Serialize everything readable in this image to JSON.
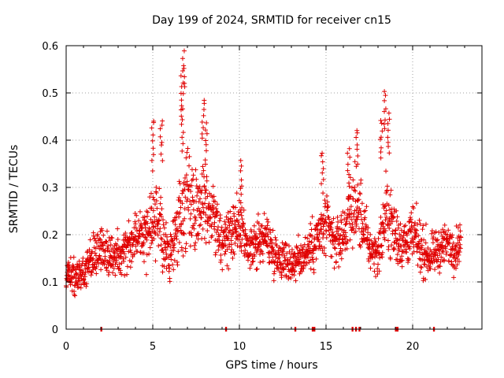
{
  "chart_data": {
    "type": "scatter",
    "title": "Day 199 of 2024, SRMTID for receiver cn15",
    "xlabel": "GPS time / hours",
    "ylabel": "SRMTID / TECUs",
    "xlim": [
      0,
      24
    ],
    "ylim": [
      0,
      0.6
    ],
    "xticks": [
      0,
      5,
      10,
      15,
      20
    ],
    "xtick_labels": [
      "0",
      "5",
      "10",
      "15",
      "20"
    ],
    "yticks": [
      0,
      0.1,
      0.2,
      0.3,
      0.4,
      0.5,
      0.6
    ],
    "ytick_labels": [
      "0",
      "0.1",
      "0.2",
      "0.3",
      "0.4",
      "0.5",
      "0.6"
    ],
    "grid": true,
    "marker": "+",
    "color": "#e00000",
    "envelope": {
      "hours": [
        0,
        0.5,
        1,
        1.5,
        2,
        2.5,
        3,
        3.5,
        4,
        4.5,
        5,
        5.5,
        6,
        6.5,
        7,
        7.5,
        8,
        8.5,
        9,
        9.5,
        10,
        10.5,
        11,
        11.5,
        12,
        12.5,
        13,
        13.5,
        14,
        14.5,
        15,
        15.5,
        16,
        16.5,
        17,
        17.5,
        18,
        18.5,
        19,
        19.5,
        20,
        20.5,
        21,
        21.5,
        22,
        22.5,
        22.8
      ],
      "center": [
        0.12,
        0.11,
        0.12,
        0.15,
        0.17,
        0.15,
        0.16,
        0.18,
        0.2,
        0.2,
        0.24,
        0.2,
        0.15,
        0.22,
        0.28,
        0.25,
        0.28,
        0.24,
        0.18,
        0.2,
        0.22,
        0.16,
        0.18,
        0.2,
        0.16,
        0.15,
        0.14,
        0.15,
        0.17,
        0.19,
        0.22,
        0.18,
        0.2,
        0.26,
        0.24,
        0.17,
        0.16,
        0.25,
        0.2,
        0.18,
        0.2,
        0.17,
        0.15,
        0.17,
        0.18,
        0.17,
        0.19
      ],
      "spread": [
        0.04,
        0.04,
        0.05,
        0.06,
        0.05,
        0.05,
        0.05,
        0.06,
        0.06,
        0.07,
        0.1,
        0.08,
        0.06,
        0.1,
        0.12,
        0.1,
        0.1,
        0.08,
        0.07,
        0.07,
        0.07,
        0.05,
        0.06,
        0.06,
        0.05,
        0.05,
        0.05,
        0.05,
        0.06,
        0.07,
        0.08,
        0.06,
        0.07,
        0.09,
        0.09,
        0.05,
        0.05,
        0.1,
        0.08,
        0.06,
        0.07,
        0.06,
        0.05,
        0.05,
        0.05,
        0.05,
        0.05
      ]
    },
    "peaks": [
      {
        "x": 5.0,
        "y": 0.45
      },
      {
        "x": 5.5,
        "y": 0.45
      },
      {
        "x": 6.8,
        "y": 0.59
      },
      {
        "x": 6.7,
        "y": 0.55
      },
      {
        "x": 6.7,
        "y": 0.47
      },
      {
        "x": 7.9,
        "y": 0.49
      },
      {
        "x": 8.1,
        "y": 0.44
      },
      {
        "x": 10.1,
        "y": 0.36
      },
      {
        "x": 14.8,
        "y": 0.38
      },
      {
        "x": 16.3,
        "y": 0.39
      },
      {
        "x": 16.8,
        "y": 0.43
      },
      {
        "x": 18.4,
        "y": 0.51
      },
      {
        "x": 18.2,
        "y": 0.45
      },
      {
        "x": 18.6,
        "y": 0.46
      }
    ],
    "zero_markers": [
      2.0,
      9.2,
      13.2,
      14.2,
      14.3,
      16.5,
      16.7,
      16.9,
      19.0,
      19.1,
      21.2
    ]
  }
}
